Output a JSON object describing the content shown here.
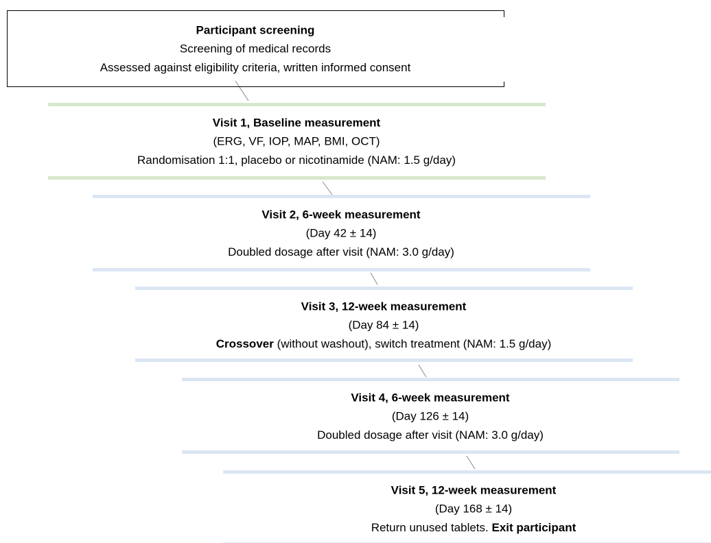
{
  "nodes": [
    {
      "title": "Participant screening",
      "lines": [
        [
          {
            "text": "Screening of medical records"
          }
        ],
        [
          {
            "text": "Assessed against eligibility criteria, written informed consent"
          }
        ]
      ]
    },
    {
      "title": "Visit 1, Baseline measurement",
      "lines": [
        [
          {
            "text": "(ERG, VF, IOP, MAP, BMI, OCT)"
          }
        ],
        [
          {
            "text": "Randomisation 1:1, placebo or nicotinamide (NAM: 1.5 g/day)"
          }
        ]
      ]
    },
    {
      "title": "Visit 2, 6-week measurement",
      "lines": [
        [
          {
            "text": "(Day 42 ± 14)"
          }
        ],
        [
          {
            "text": "Doubled dosage after visit (NAM: 3.0 g/day)"
          }
        ]
      ]
    },
    {
      "title": "Visit 3, 12-week measurement",
      "lines": [
        [
          {
            "text": "(Day 84 ± 14)"
          }
        ],
        [
          {
            "text": "Crossover",
            "bold": true
          },
          {
            "text": " (without washout), switch treatment (NAM: 1.5 g/day)"
          }
        ]
      ]
    },
    {
      "title": "Visit 4, 6-week measurement",
      "lines": [
        [
          {
            "text": "(Day 126 ± 14)"
          }
        ],
        [
          {
            "text": "Doubled dosage after visit (NAM: 3.0 g/day)"
          }
        ]
      ]
    },
    {
      "title": "Visit 5, 12-week measurement",
      "lines": [
        [
          {
            "text": "(Day 168 ± 14)"
          }
        ],
        [
          {
            "text": "Return unused tablets. "
          },
          {
            "text": "Exit participant",
            "bold": true
          }
        ]
      ]
    }
  ]
}
